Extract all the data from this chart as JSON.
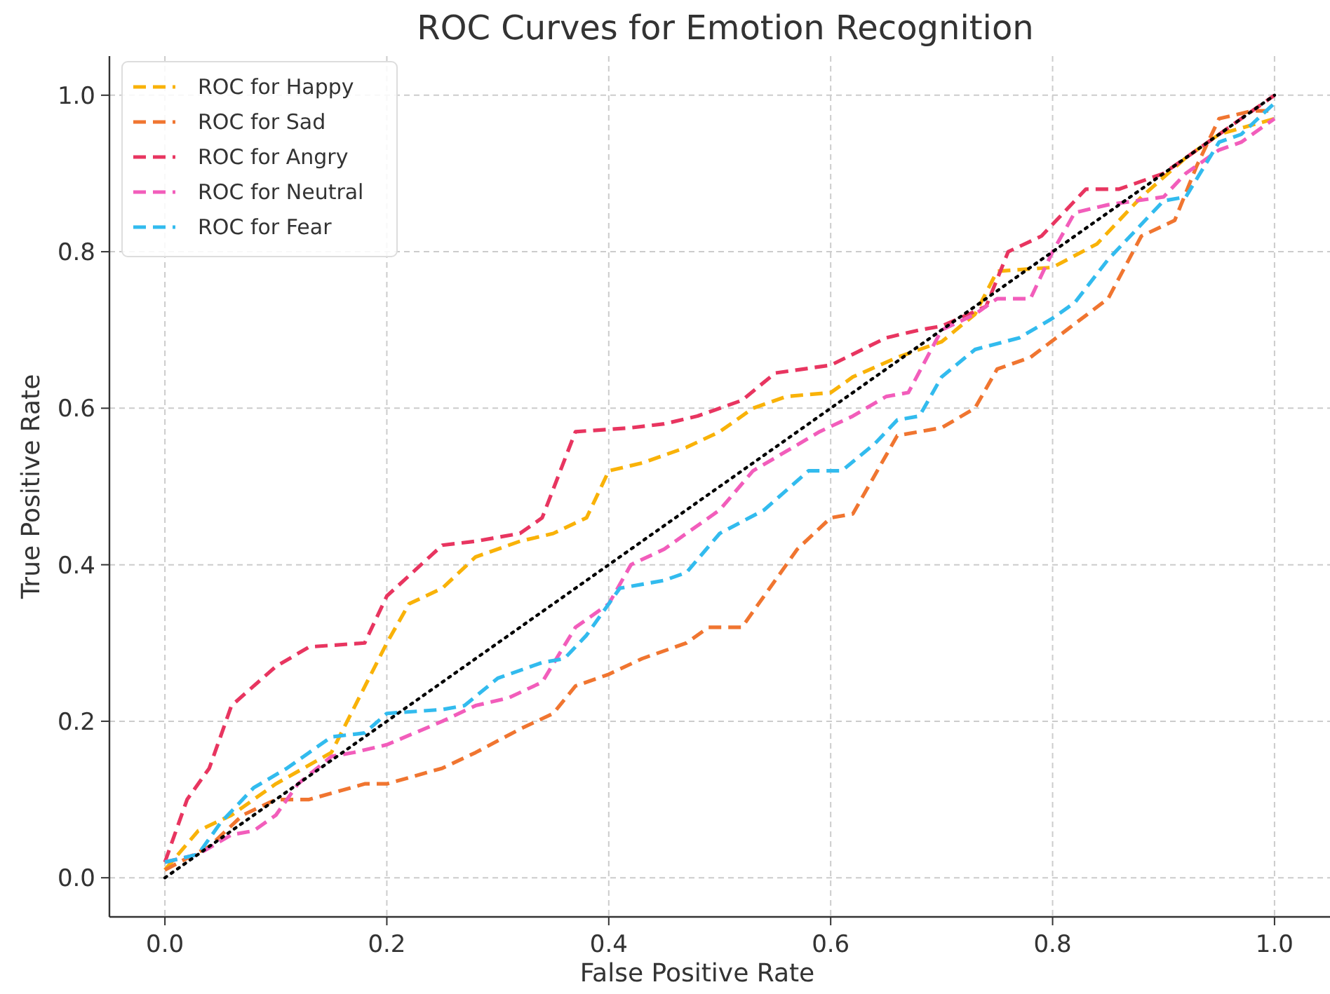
{
  "chart_data": {
    "type": "line",
    "title": "ROC Curves for Emotion Recognition",
    "xlabel": "False Positive Rate",
    "ylabel": "True Positive Rate",
    "xlim": [
      -0.05,
      1.05
    ],
    "ylim": [
      -0.05,
      1.05
    ],
    "xticks": [
      {
        "value": 0,
        "label": "0.0"
      },
      {
        "value": 0.2,
        "label": "0.2"
      },
      {
        "value": 0.4,
        "label": "0.4"
      },
      {
        "value": 0.6,
        "label": "0.6"
      },
      {
        "value": 0.8,
        "label": "0.8"
      },
      {
        "value": 1,
        "label": "1.0"
      }
    ],
    "yticks": [
      {
        "value": 0,
        "label": "0.0"
      },
      {
        "value": 0.2,
        "label": "0.2"
      },
      {
        "value": 0.4,
        "label": "0.4"
      },
      {
        "value": 0.6,
        "label": "0.6"
      },
      {
        "value": 0.8,
        "label": "0.8"
      },
      {
        "value": 1,
        "label": "1.0"
      }
    ],
    "grid": true,
    "legend": "top left",
    "line_style": "dashed",
    "series": [
      {
        "name": "ROC for Happy",
        "color": "#f9b208",
        "x": [
          0,
          0.03,
          0.06,
          0.1,
          0.15,
          0.2,
          0.22,
          0.25,
          0.28,
          0.32,
          0.35,
          0.38,
          0.4,
          0.43,
          0.47,
          0.5,
          0.53,
          0.56,
          0.6,
          0.62,
          0.66,
          0.7,
          0.73,
          0.75,
          0.8,
          0.84,
          0.88,
          0.92,
          0.95,
          1
        ],
        "values": [
          0.01,
          0.06,
          0.08,
          0.12,
          0.16,
          0.3,
          0.35,
          0.37,
          0.41,
          0.43,
          0.44,
          0.46,
          0.52,
          0.53,
          0.55,
          0.57,
          0.6,
          0.615,
          0.62,
          0.64,
          0.665,
          0.685,
          0.72,
          0.775,
          0.78,
          0.81,
          0.87,
          0.92,
          0.95,
          0.97
        ]
      },
      {
        "name": "ROC for Sad",
        "color": "#f07530",
        "x": [
          0,
          0.04,
          0.07,
          0.1,
          0.13,
          0.18,
          0.2,
          0.25,
          0.28,
          0.32,
          0.35,
          0.37,
          0.4,
          0.43,
          0.47,
          0.49,
          0.52,
          0.55,
          0.57,
          0.6,
          0.62,
          0.65,
          0.66,
          0.7,
          0.73,
          0.75,
          0.78,
          0.85,
          0.88,
          0.91,
          0.93,
          0.95,
          0.98,
          1
        ],
        "values": [
          0.01,
          0.04,
          0.08,
          0.1,
          0.1,
          0.12,
          0.12,
          0.14,
          0.16,
          0.19,
          0.21,
          0.245,
          0.26,
          0.28,
          0.3,
          0.32,
          0.32,
          0.38,
          0.42,
          0.46,
          0.465,
          0.54,
          0.565,
          0.575,
          0.6,
          0.65,
          0.665,
          0.74,
          0.82,
          0.84,
          0.91,
          0.97,
          0.98,
          0.98
        ]
      },
      {
        "name": "ROC for Angry",
        "color": "#e83560",
        "x": [
          0,
          0.02,
          0.04,
          0.06,
          0.1,
          0.13,
          0.18,
          0.2,
          0.25,
          0.28,
          0.32,
          0.34,
          0.37,
          0.42,
          0.45,
          0.48,
          0.52,
          0.55,
          0.6,
          0.65,
          0.68,
          0.7,
          0.74,
          0.76,
          0.79,
          0.83,
          0.86,
          0.9,
          0.93,
          0.96,
          1
        ],
        "values": [
          0.02,
          0.1,
          0.14,
          0.22,
          0.27,
          0.295,
          0.3,
          0.36,
          0.425,
          0.43,
          0.44,
          0.46,
          0.57,
          0.575,
          0.58,
          0.59,
          0.61,
          0.645,
          0.655,
          0.69,
          0.7,
          0.705,
          0.73,
          0.8,
          0.82,
          0.88,
          0.88,
          0.9,
          0.93,
          0.96,
          1
        ]
      },
      {
        "name": "ROC for Neutral",
        "color": "#f25dbb",
        "x": [
          0,
          0.03,
          0.06,
          0.08,
          0.1,
          0.12,
          0.15,
          0.17,
          0.2,
          0.25,
          0.28,
          0.31,
          0.34,
          0.37,
          0.4,
          0.42,
          0.45,
          0.5,
          0.53,
          0.56,
          0.59,
          0.62,
          0.65,
          0.67,
          0.7,
          0.73,
          0.75,
          0.78,
          0.8,
          0.82,
          0.85,
          0.9,
          0.92,
          0.95,
          0.97,
          1
        ],
        "values": [
          0.02,
          0.03,
          0.055,
          0.06,
          0.08,
          0.12,
          0.155,
          0.16,
          0.17,
          0.2,
          0.22,
          0.23,
          0.25,
          0.32,
          0.35,
          0.4,
          0.42,
          0.47,
          0.52,
          0.545,
          0.57,
          0.59,
          0.615,
          0.62,
          0.7,
          0.72,
          0.74,
          0.74,
          0.8,
          0.85,
          0.86,
          0.87,
          0.9,
          0.93,
          0.94,
          0.97
        ]
      },
      {
        "name": "ROC for Fear",
        "color": "#32bbee",
        "x": [
          0,
          0.03,
          0.05,
          0.08,
          0.11,
          0.13,
          0.15,
          0.18,
          0.2,
          0.25,
          0.27,
          0.3,
          0.34,
          0.36,
          0.38,
          0.41,
          0.45,
          0.47,
          0.5,
          0.54,
          0.58,
          0.61,
          0.64,
          0.66,
          0.68,
          0.7,
          0.73,
          0.77,
          0.8,
          0.82,
          0.85,
          0.9,
          0.92,
          0.95,
          0.97,
          1
        ],
        "values": [
          0.02,
          0.03,
          0.07,
          0.115,
          0.14,
          0.16,
          0.18,
          0.185,
          0.21,
          0.215,
          0.22,
          0.255,
          0.275,
          0.28,
          0.31,
          0.37,
          0.38,
          0.39,
          0.44,
          0.47,
          0.52,
          0.52,
          0.555,
          0.585,
          0.59,
          0.64,
          0.675,
          0.69,
          0.715,
          0.735,
          0.79,
          0.865,
          0.87,
          0.94,
          0.95,
          0.99
        ]
      },
      {
        "color": "#000000",
        "line_style": "dotted",
        "x": [
          0,
          1
        ],
        "values": [
          0,
          1
        ]
      }
    ]
  }
}
